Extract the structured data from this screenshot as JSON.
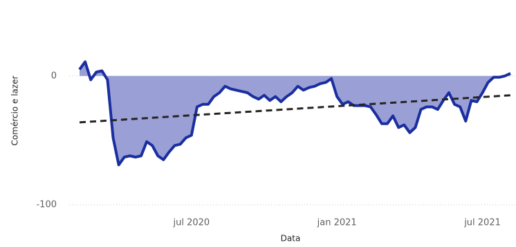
{
  "chart_data": {
    "type": "area_line",
    "y_label": "Comércio e lazer",
    "x_label": "Data",
    "categories": [
      null,
      null,
      null,
      null,
      null,
      null,
      null,
      null,
      null,
      null,
      null,
      null,
      null,
      null,
      null,
      null,
      null,
      null,
      null,
      null,
      "jul 2020",
      null,
      null,
      null,
      null,
      null,
      null,
      null,
      null,
      null,
      null,
      null,
      null,
      null,
      null,
      null,
      null,
      null,
      null,
      null,
      null,
      null,
      null,
      null,
      null,
      null,
      "jan 2021",
      null,
      null,
      null,
      null,
      null,
      null,
      null,
      null,
      null,
      null,
      null,
      null,
      null,
      null,
      null,
      null,
      null,
      null,
      null,
      null,
      null,
      null,
      null,
      null,
      null,
      "jul 2021",
      null,
      null,
      null,
      null,
      null
    ],
    "series": [
      {
        "color": "#1a2ea0",
        "fill": "#9aa0d6",
        "values": [
          5,
          11,
          -3,
          3,
          4,
          -3,
          -48,
          -69,
          -63,
          -62,
          -63,
          -62,
          -51,
          -54,
          -62,
          -65,
          -59,
          -54,
          -53,
          -48,
          -46,
          -24,
          -22,
          -22,
          -16,
          -13,
          -8,
          -10,
          -11,
          -12,
          -13,
          -16,
          -18,
          -15,
          -19,
          -16,
          -20,
          -16,
          -13,
          -8,
          -11,
          -9,
          -8,
          -6,
          -5,
          -2,
          -16,
          -22,
          -20,
          -23,
          -23,
          -23,
          -24,
          -30,
          -37,
          -37,
          -31,
          -40,
          -38,
          -44,
          -40,
          -26,
          -24,
          -24,
          -26,
          -19,
          -13,
          -22,
          -24,
          -35,
          -19,
          -20,
          -13,
          -5,
          -1,
          -1,
          0,
          2
        ]
      }
    ],
    "trendline": {
      "color": "#252423",
      "values": [
        -36,
        -15
      ]
    },
    "ylim": [
      -100,
      16
    ],
    "yticks": [
      -100,
      0
    ],
    "grid": true
  }
}
